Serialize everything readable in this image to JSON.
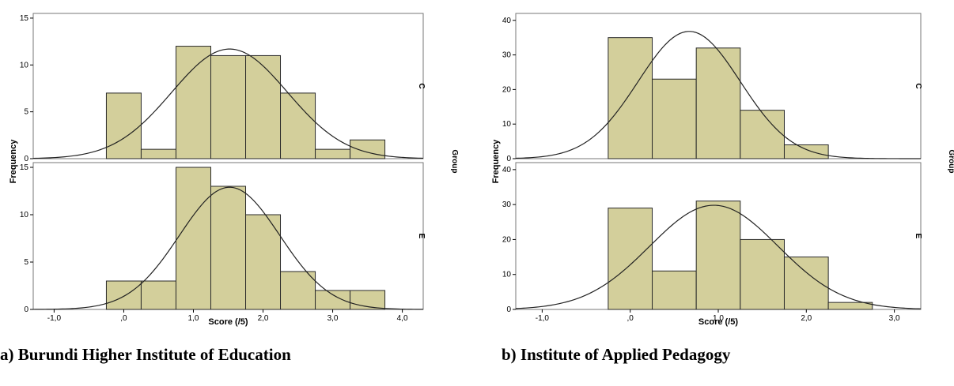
{
  "captions": {
    "a": "a) Burundi Higher Institute of Education",
    "b": "b) Institute of Applied Pedagogy"
  },
  "colors": {
    "bar_fill": "#d3cf9b",
    "bar_stroke": "#2a2a2a",
    "curve": "#222222",
    "frame": "#777777"
  },
  "chart_data": [
    {
      "type": "bar",
      "xlabel": "Score (/5)",
      "ylabel": "Frequency",
      "facet_label": "Group",
      "xlim": [
        -1.3,
        4.3
      ],
      "xticks": [
        -1.0,
        0.0,
        1.0,
        2.0,
        3.0,
        4.0
      ],
      "xtick_labels": [
        "-1,0",
        ",0",
        "1,0",
        "2,0",
        "3,0",
        "4,0"
      ],
      "bin_edges": [
        -0.25,
        0.25,
        0.75,
        1.25,
        1.75,
        2.25,
        2.75,
        3.25,
        3.75
      ],
      "ylim": [
        0,
        15.5
      ],
      "yticks": [
        0,
        5,
        10,
        15
      ],
      "ytick_labels": [
        "0",
        "5",
        "10",
        "15"
      ],
      "panels": [
        {
          "group": "C",
          "values": [
            7,
            1,
            12,
            11,
            11,
            7,
            1,
            2
          ],
          "normal_mean": 1.52,
          "normal_peak": 11.7,
          "normal_sd": 0.83
        },
        {
          "group": "E",
          "values": [
            3,
            3,
            15,
            13,
            10,
            4,
            2,
            2
          ],
          "normal_mean": 1.52,
          "normal_peak": 12.9,
          "normal_sd": 0.72
        }
      ]
    },
    {
      "type": "bar",
      "xlabel": "Score (/5)",
      "ylabel": "Frequency",
      "facet_label": "Group",
      "xlim": [
        -1.3,
        3.3
      ],
      "xticks": [
        -1.0,
        0.0,
        1.0,
        2.0,
        3.0
      ],
      "xtick_labels": [
        "-1,0",
        ",0",
        "1,0",
        "2,0",
        "3,0"
      ],
      "bin_edges": [
        -0.25,
        0.25,
        0.75,
        1.25,
        1.75,
        2.25,
        2.75
      ],
      "ylim": [
        0,
        42
      ],
      "yticks": [
        0,
        10,
        20,
        30,
        40
      ],
      "ytick_labels": [
        "0",
        "10",
        "20",
        "30",
        "40"
      ],
      "panels": [
        {
          "group": "C",
          "values": [
            35,
            23,
            32,
            14,
            4,
            0
          ],
          "normal_mean": 0.67,
          "normal_peak": 36.8,
          "normal_sd": 0.58
        },
        {
          "group": "E",
          "values": [
            29,
            11,
            31,
            20,
            15,
            2
          ],
          "normal_mean": 0.95,
          "normal_peak": 29.8,
          "normal_sd": 0.73
        }
      ]
    }
  ]
}
